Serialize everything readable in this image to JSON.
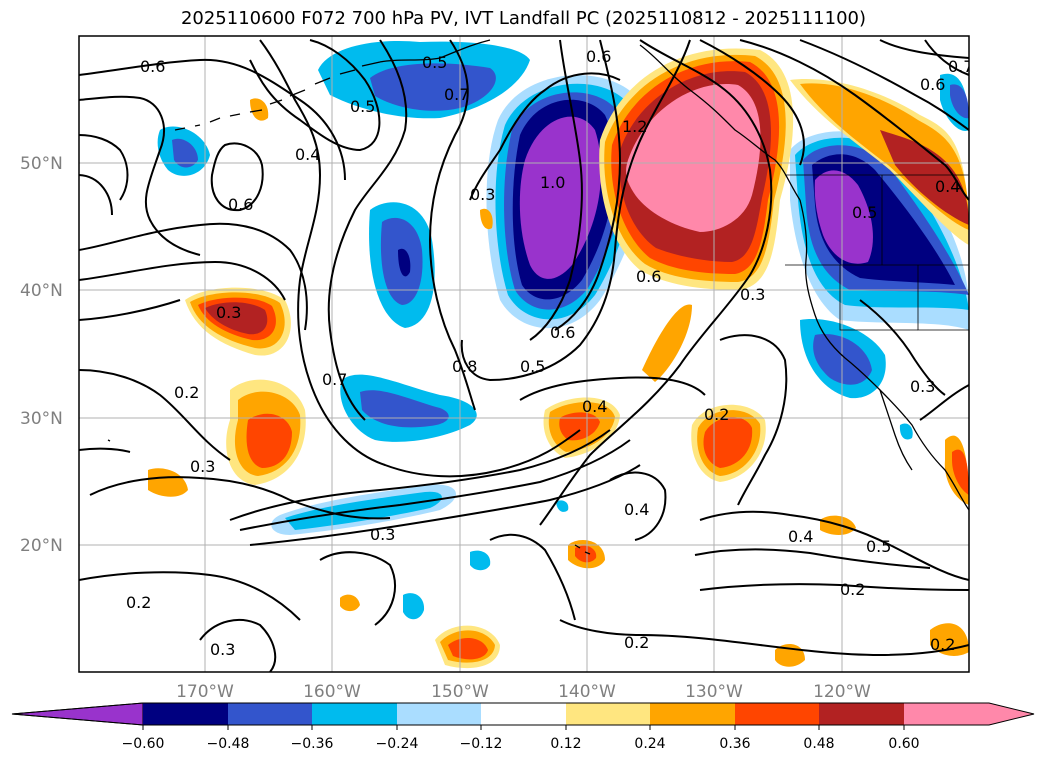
{
  "title": "2025110600 F072 700 hPa PV, IVT Landfall PC (2025110812 - 2025111100)",
  "lat_labels": [
    "50°N",
    "40°N",
    "30°N",
    "20°N"
  ],
  "lon_labels": [
    "170°W",
    "160°W",
    "150°W",
    "140°W",
    "130°W",
    "120°W"
  ],
  "contour_labels": [
    "0.6",
    "0.5",
    "0.7",
    "0.6",
    "1.2",
    "0.6",
    "0.7",
    "0.4",
    "0.6",
    "0.4",
    "0.5",
    "0.3",
    "1.0",
    "0.5",
    "0.3",
    "0.6",
    "0.3",
    "0.7",
    "0.8",
    "0.5",
    "0.6",
    "0.2",
    "0.3",
    "0.4",
    "0.2",
    "0.4",
    "0.3",
    "0.4",
    "0.5",
    "0.2",
    "0.2",
    "0.3",
    "0.2",
    "0.3",
    "0.2"
  ],
  "colorbar": {
    "ticks": [
      "−0.60",
      "−0.48",
      "−0.36",
      "−0.24",
      "−0.12",
      "0.12",
      "0.24",
      "0.36",
      "0.48",
      "0.60"
    ],
    "colors": {
      "neg_extend": "#9933cc",
      "neg_060": "#000080",
      "neg_048": "#3355cc",
      "neg_036": "#00bbee",
      "neg_024": "#aaddff",
      "neutral": "#ffffff",
      "pos_012": "#ffe680",
      "pos_024": "#ffa500",
      "pos_036": "#ff4500",
      "pos_048": "#b22222",
      "pos_extend": "#ff88aa"
    }
  }
}
